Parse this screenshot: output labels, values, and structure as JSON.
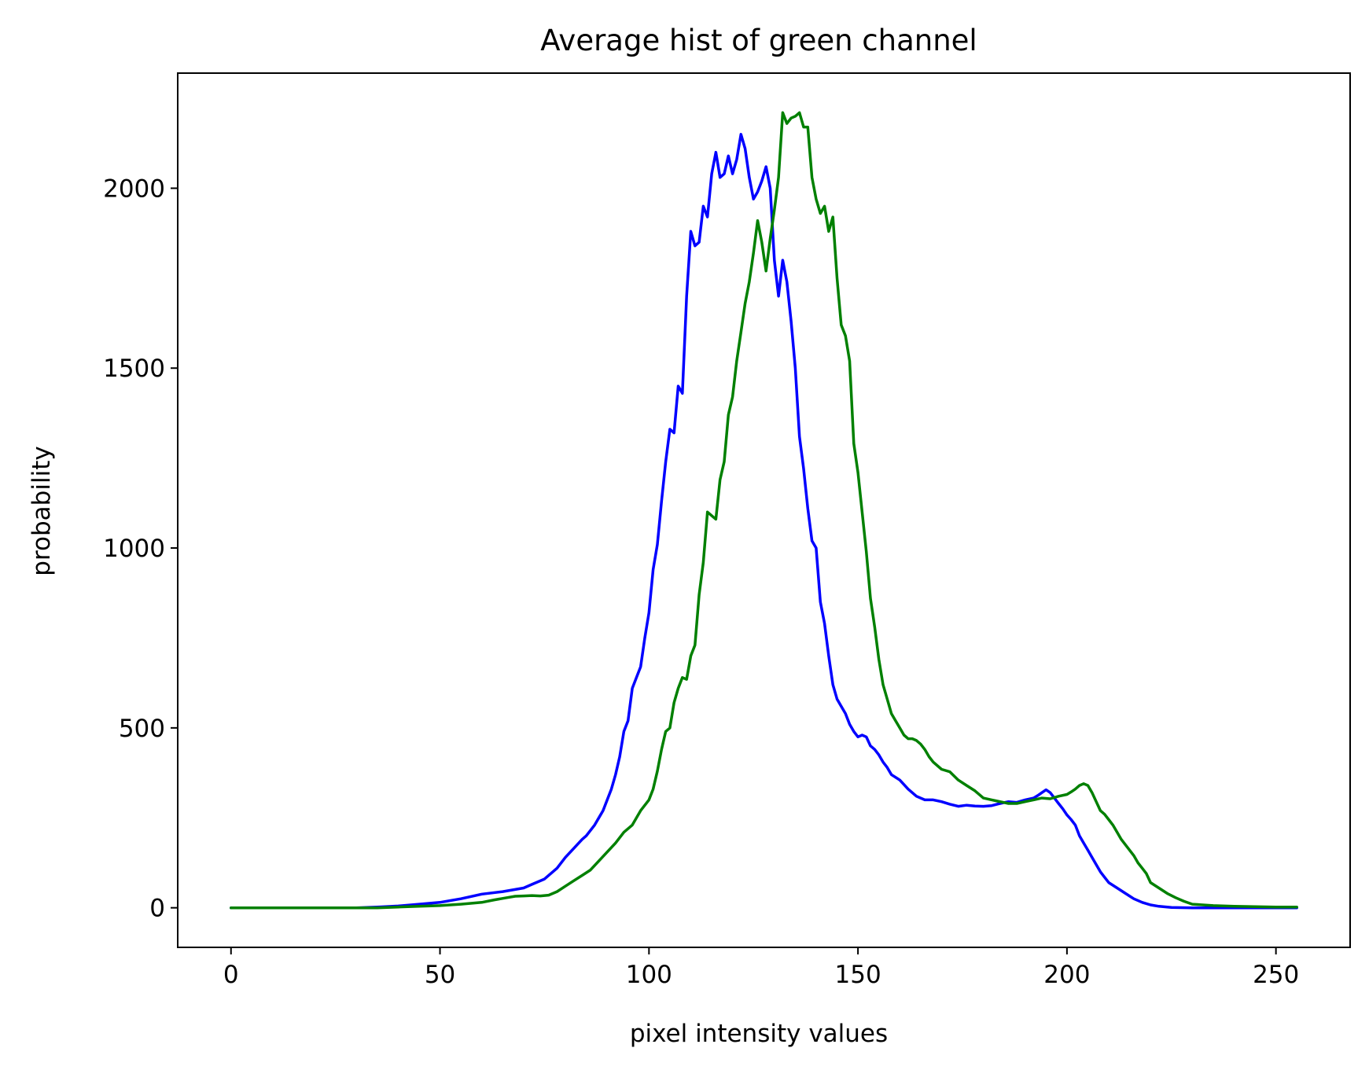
{
  "chart_data": {
    "type": "line",
    "title": "Average hist of green channel",
    "xlabel": "pixel intensity values",
    "ylabel": "probability",
    "xlim": [
      -12.75,
      267.75
    ],
    "ylim": [
      -110,
      2320
    ],
    "xticks": [
      0,
      50,
      100,
      150,
      200,
      250
    ],
    "yticks": [
      0,
      500,
      1000,
      1500,
      2000
    ],
    "grid": false,
    "legend": "none",
    "series": [
      {
        "color": "#0000ff",
        "points": [
          [
            0,
            0
          ],
          [
            30,
            0
          ],
          [
            35,
            2
          ],
          [
            40,
            5
          ],
          [
            45,
            10
          ],
          [
            50,
            15
          ],
          [
            55,
            25
          ],
          [
            60,
            38
          ],
          [
            65,
            45
          ],
          [
            70,
            55
          ],
          [
            72,
            65
          ],
          [
            75,
            80
          ],
          [
            78,
            110
          ],
          [
            80,
            140
          ],
          [
            82,
            165
          ],
          [
            84,
            190
          ],
          [
            85,
            200
          ],
          [
            87,
            230
          ],
          [
            89,
            270
          ],
          [
            91,
            330
          ],
          [
            92,
            370
          ],
          [
            93,
            420
          ],
          [
            94,
            490
          ],
          [
            95,
            520
          ],
          [
            96,
            610
          ],
          [
            97,
            640
          ],
          [
            98,
            670
          ],
          [
            99,
            750
          ],
          [
            100,
            820
          ],
          [
            101,
            940
          ],
          [
            102,
            1010
          ],
          [
            103,
            1130
          ],
          [
            104,
            1240
          ],
          [
            105,
            1330
          ],
          [
            106,
            1320
          ],
          [
            107,
            1450
          ],
          [
            108,
            1430
          ],
          [
            109,
            1700
          ],
          [
            110,
            1880
          ],
          [
            111,
            1840
          ],
          [
            112,
            1850
          ],
          [
            113,
            1950
          ],
          [
            114,
            1920
          ],
          [
            115,
            2040
          ],
          [
            116,
            2100
          ],
          [
            117,
            2030
          ],
          [
            118,
            2040
          ],
          [
            119,
            2090
          ],
          [
            120,
            2040
          ],
          [
            121,
            2080
          ],
          [
            122,
            2150
          ],
          [
            123,
            2110
          ],
          [
            124,
            2030
          ],
          [
            125,
            1970
          ],
          [
            126,
            1990
          ],
          [
            127,
            2020
          ],
          [
            128,
            2060
          ],
          [
            129,
            2000
          ],
          [
            130,
            1800
          ],
          [
            131,
            1700
          ],
          [
            132,
            1800
          ],
          [
            133,
            1740
          ],
          [
            134,
            1630
          ],
          [
            135,
            1500
          ],
          [
            136,
            1310
          ],
          [
            137,
            1220
          ],
          [
            138,
            1110
          ],
          [
            139,
            1020
          ],
          [
            140,
            1000
          ],
          [
            141,
            850
          ],
          [
            142,
            790
          ],
          [
            143,
            700
          ],
          [
            144,
            620
          ],
          [
            145,
            580
          ],
          [
            146,
            560
          ],
          [
            147,
            540
          ],
          [
            148,
            510
          ],
          [
            149,
            490
          ],
          [
            150,
            475
          ],
          [
            151,
            480
          ],
          [
            152,
            475
          ],
          [
            153,
            450
          ],
          [
            154,
            440
          ],
          [
            155,
            425
          ],
          [
            156,
            405
          ],
          [
            157,
            390
          ],
          [
            158,
            370
          ],
          [
            160,
            355
          ],
          [
            162,
            330
          ],
          [
            164,
            310
          ],
          [
            166,
            300
          ],
          [
            168,
            300
          ],
          [
            170,
            295
          ],
          [
            172,
            288
          ],
          [
            174,
            282
          ],
          [
            176,
            285
          ],
          [
            178,
            283
          ],
          [
            180,
            282
          ],
          [
            182,
            284
          ],
          [
            184,
            290
          ],
          [
            186,
            295
          ],
          [
            188,
            293
          ],
          [
            190,
            300
          ],
          [
            192,
            305
          ],
          [
            193,
            312
          ],
          [
            194,
            320
          ],
          [
            195,
            328
          ],
          [
            196,
            320
          ],
          [
            197,
            305
          ],
          [
            198,
            290
          ],
          [
            199,
            275
          ],
          [
            200,
            258
          ],
          [
            201,
            245
          ],
          [
            202,
            230
          ],
          [
            203,
            200
          ],
          [
            204,
            180
          ],
          [
            205,
            160
          ],
          [
            206,
            140
          ],
          [
            207,
            120
          ],
          [
            208,
            100
          ],
          [
            209,
            85
          ],
          [
            210,
            70
          ],
          [
            212,
            55
          ],
          [
            214,
            40
          ],
          [
            216,
            25
          ],
          [
            218,
            15
          ],
          [
            220,
            8
          ],
          [
            222,
            4
          ],
          [
            225,
            1
          ],
          [
            230,
            0
          ],
          [
            255,
            0
          ]
        ]
      },
      {
        "color": "#008000",
        "points": [
          [
            0,
            0
          ],
          [
            35,
            0
          ],
          [
            40,
            2
          ],
          [
            45,
            4
          ],
          [
            50,
            6
          ],
          [
            55,
            10
          ],
          [
            60,
            15
          ],
          [
            63,
            22
          ],
          [
            66,
            28
          ],
          [
            68,
            32
          ],
          [
            70,
            33
          ],
          [
            72,
            34
          ],
          [
            74,
            33
          ],
          [
            76,
            35
          ],
          [
            78,
            45
          ],
          [
            80,
            60
          ],
          [
            82,
            75
          ],
          [
            84,
            90
          ],
          [
            86,
            105
          ],
          [
            88,
            130
          ],
          [
            90,
            155
          ],
          [
            92,
            180
          ],
          [
            94,
            210
          ],
          [
            96,
            230
          ],
          [
            98,
            270
          ],
          [
            100,
            300
          ],
          [
            101,
            330
          ],
          [
            102,
            380
          ],
          [
            103,
            440
          ],
          [
            104,
            490
          ],
          [
            105,
            500
          ],
          [
            106,
            570
          ],
          [
            107,
            610
          ],
          [
            108,
            640
          ],
          [
            109,
            635
          ],
          [
            110,
            700
          ],
          [
            111,
            730
          ],
          [
            112,
            870
          ],
          [
            113,
            960
          ],
          [
            114,
            1100
          ],
          [
            115,
            1090
          ],
          [
            116,
            1080
          ],
          [
            117,
            1190
          ],
          [
            118,
            1240
          ],
          [
            119,
            1370
          ],
          [
            120,
            1420
          ],
          [
            121,
            1520
          ],
          [
            122,
            1600
          ],
          [
            123,
            1680
          ],
          [
            124,
            1740
          ],
          [
            125,
            1820
          ],
          [
            126,
            1910
          ],
          [
            127,
            1850
          ],
          [
            128,
            1770
          ],
          [
            129,
            1860
          ],
          [
            130,
            1940
          ],
          [
            131,
            2030
          ],
          [
            132,
            2210
          ],
          [
            133,
            2180
          ],
          [
            134,
            2195
          ],
          [
            135,
            2200
          ],
          [
            136,
            2210
          ],
          [
            137,
            2170
          ],
          [
            138,
            2170
          ],
          [
            139,
            2030
          ],
          [
            140,
            1970
          ],
          [
            141,
            1930
          ],
          [
            142,
            1950
          ],
          [
            143,
            1880
          ],
          [
            144,
            1920
          ],
          [
            145,
            1750
          ],
          [
            146,
            1620
          ],
          [
            147,
            1590
          ],
          [
            148,
            1520
          ],
          [
            149,
            1290
          ],
          [
            150,
            1210
          ],
          [
            151,
            1100
          ],
          [
            152,
            990
          ],
          [
            153,
            860
          ],
          [
            154,
            780
          ],
          [
            155,
            690
          ],
          [
            156,
            620
          ],
          [
            157,
            580
          ],
          [
            158,
            540
          ],
          [
            159,
            520
          ],
          [
            160,
            500
          ],
          [
            161,
            480
          ],
          [
            162,
            470
          ],
          [
            163,
            470
          ],
          [
            164,
            465
          ],
          [
            165,
            455
          ],
          [
            166,
            440
          ],
          [
            167,
            420
          ],
          [
            168,
            405
          ],
          [
            170,
            385
          ],
          [
            172,
            378
          ],
          [
            174,
            355
          ],
          [
            176,
            340
          ],
          [
            178,
            325
          ],
          [
            180,
            305
          ],
          [
            182,
            300
          ],
          [
            184,
            295
          ],
          [
            186,
            290
          ],
          [
            188,
            290
          ],
          [
            190,
            295
          ],
          [
            192,
            300
          ],
          [
            194,
            305
          ],
          [
            196,
            303
          ],
          [
            198,
            310
          ],
          [
            200,
            315
          ],
          [
            201,
            322
          ],
          [
            202,
            330
          ],
          [
            203,
            340
          ],
          [
            204,
            345
          ],
          [
            205,
            340
          ],
          [
            206,
            320
          ],
          [
            207,
            295
          ],
          [
            208,
            270
          ],
          [
            209,
            260
          ],
          [
            210,
            245
          ],
          [
            211,
            230
          ],
          [
            212,
            210
          ],
          [
            213,
            190
          ],
          [
            214,
            175
          ],
          [
            215,
            160
          ],
          [
            216,
            145
          ],
          [
            217,
            125
          ],
          [
            218,
            110
          ],
          [
            219,
            95
          ],
          [
            220,
            70
          ],
          [
            222,
            55
          ],
          [
            224,
            40
          ],
          [
            226,
            28
          ],
          [
            228,
            18
          ],
          [
            230,
            10
          ],
          [
            235,
            6
          ],
          [
            240,
            4
          ],
          [
            245,
            3
          ],
          [
            250,
            2
          ],
          [
            255,
            2
          ]
        ]
      }
    ]
  }
}
